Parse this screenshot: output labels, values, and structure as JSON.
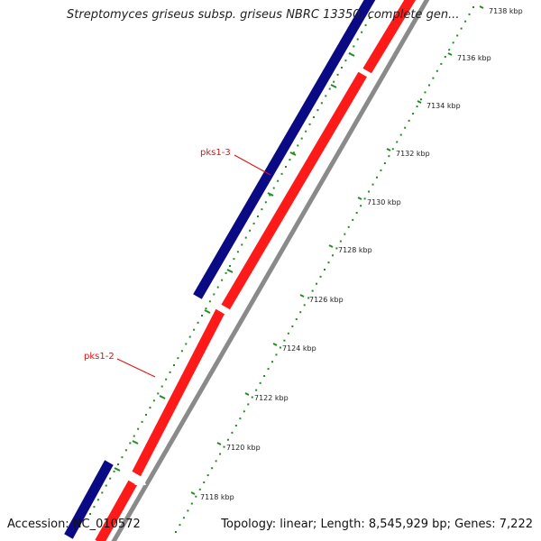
{
  "header": {
    "title": "Streptomyces griseus subsp. griseus NBRC 13350, complete gen..."
  },
  "footer": {
    "accession": "Accession: NC_010572",
    "summary": "Topology: linear; Length: 8,545,929 bp; Genes: 7,222"
  },
  "genes": [
    {
      "label": "pks1-3",
      "strand": "forward",
      "color": "#0a0a85"
    },
    {
      "label": "pks1-2",
      "strand": "reverse",
      "color": "#ff1a1a"
    }
  ],
  "scale_labels": [
    "7118 kbp",
    "7120 kbp",
    "7122 kbp",
    "7124 kbp",
    "7126 kbp",
    "7128 kbp",
    "7130 kbp",
    "7132 kbp",
    "7134 kbp",
    "7136 kbp",
    "7138 kbp"
  ],
  "colors": {
    "forward_track": "#0a0a85",
    "reverse_track": "#ff1a1a",
    "shadow": "#8a8a8a",
    "dots": "#228b22",
    "gene_label": "#e01010"
  }
}
